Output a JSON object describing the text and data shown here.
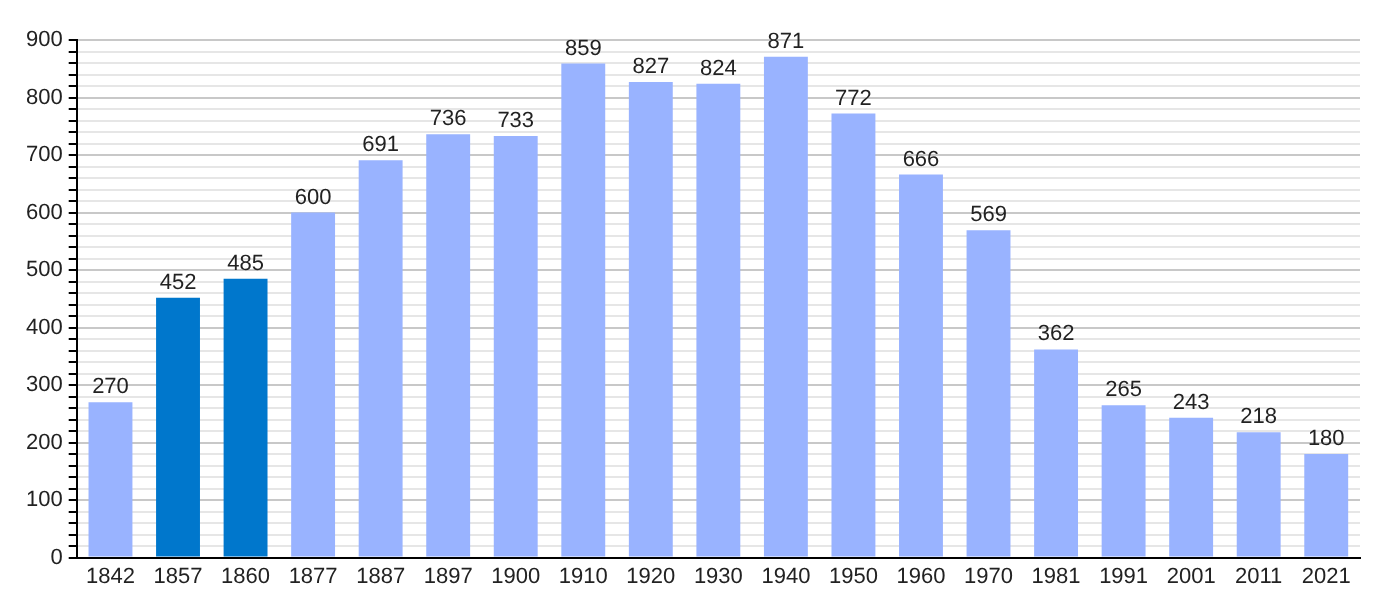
{
  "chart_data": {
    "type": "bar",
    "categories": [
      "1842",
      "1857",
      "1860",
      "1877",
      "1887",
      "1897",
      "1900",
      "1910",
      "1920",
      "1930",
      "1940",
      "1950",
      "1960",
      "1970",
      "1981",
      "1991",
      "2001",
      "2011",
      "2021"
    ],
    "values": [
      270,
      452,
      485,
      600,
      691,
      736,
      733,
      859,
      827,
      824,
      871,
      772,
      666,
      569,
      362,
      265,
      243,
      218,
      180
    ],
    "colors": [
      "#99b3ff",
      "#0077cc",
      "#0077cc",
      "#99b3ff",
      "#99b3ff",
      "#99b3ff",
      "#99b3ff",
      "#99b3ff",
      "#99b3ff",
      "#99b3ff",
      "#99b3ff",
      "#99b3ff",
      "#99b3ff",
      "#99b3ff",
      "#99b3ff",
      "#99b3ff",
      "#99b3ff",
      "#99b3ff",
      "#99b3ff"
    ],
    "ylim": [
      0,
      900
    ],
    "yticks": [
      0,
      {
        "value": 20,
        "label": null
      },
      {
        "value": 40,
        "label": null
      },
      {
        "value": 60,
        "label": null
      },
      {
        "value": 80,
        "label": null
      },
      100,
      {
        "value": 120,
        "label": null
      },
      {
        "value": 140,
        "label": null
      },
      {
        "value": 160,
        "label": null
      },
      {
        "value": 180,
        "label": null
      },
      200,
      {
        "value": 220,
        "label": null
      },
      {
        "value": 240,
        "label": null
      },
      {
        "value": 260,
        "label": null
      },
      {
        "value": 280,
        "label": null
      },
      300,
      {
        "value": 320,
        "label": null
      },
      {
        "value": 340,
        "label": null
      },
      {
        "value": 360,
        "label": null
      },
      {
        "value": 380,
        "label": null
      },
      400,
      {
        "value": 420,
        "label": null
      },
      {
        "value": 440,
        "label": null
      },
      {
        "value": 460,
        "label": null
      },
      {
        "value": 480,
        "label": null
      },
      500,
      {
        "value": 520,
        "label": null
      },
      {
        "value": 540,
        "label": null
      },
      {
        "value": 560,
        "label": null
      },
      {
        "value": 580,
        "label": null
      },
      600,
      {
        "value": 620,
        "label": null
      },
      {
        "value": 640,
        "label": null
      },
      {
        "value": 660,
        "label": null
      },
      {
        "value": 680,
        "label": null
      },
      700,
      {
        "value": 720,
        "label": null
      },
      {
        "value": 740,
        "label": null
      },
      {
        "value": 760,
        "label": null
      },
      {
        "value": 780,
        "label": null
      },
      800,
      {
        "value": 820,
        "label": null
      },
      {
        "value": 840,
        "label": null
      },
      {
        "value": 860,
        "label": null
      },
      {
        "value": 880,
        "label": null
      },
      900
    ],
    "grid": "y",
    "data_labels": true
  }
}
